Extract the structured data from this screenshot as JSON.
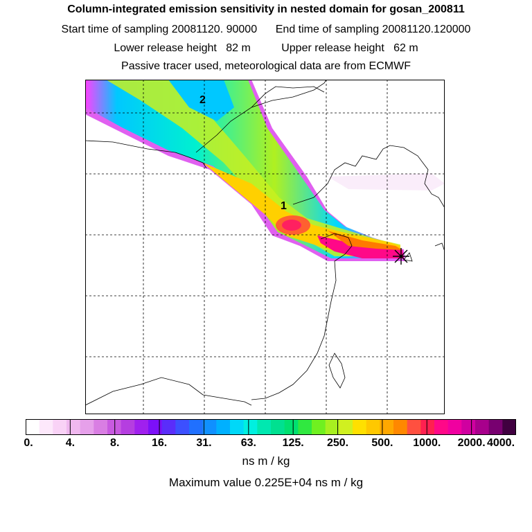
{
  "header": {
    "title": "Column-integrated emission sensitivity in nested domain for gosan_200811",
    "line2": "Start time of sampling 20081120. 90000      End time of sampling 20081120.120000",
    "line3": "Lower release height   82 m          Upper release height   62 m",
    "line4": "Passive tracer used, meteorological data are from ECMWF"
  },
  "map": {
    "cluster_labels": [
      "1",
      "2"
    ],
    "receptor_marker": "star",
    "grid": "dashed"
  },
  "colorbar": {
    "tick_labels": [
      "0.",
      "4.",
      "8.",
      "16.",
      "31.",
      "63.",
      "125.",
      "250.",
      "500.",
      "1000.",
      "2000.",
      "4000."
    ],
    "colors": [
      "#ffffff",
      "#fde8fb",
      "#f9d2f6",
      "#f0b8ef",
      "#e6a0ea",
      "#d97ee3",
      "#c85ae0",
      "#b53ee0",
      "#a020ee",
      "#7c10f8",
      "#5a2dfa",
      "#3c50ff",
      "#2070ff",
      "#1090ff",
      "#00b0ff",
      "#00d8f8",
      "#00f0e0",
      "#00e8b0",
      "#00e090",
      "#00e070",
      "#30e840",
      "#70f020",
      "#a8f020",
      "#d0f020",
      "#ffe000",
      "#ffc800",
      "#ffa800",
      "#ff8800",
      "#ff5040",
      "#ff2050",
      "#ff0888",
      "#f000a0",
      "#d000a0",
      "#a8008c",
      "#780070",
      "#400040"
    ],
    "units": "ns m / kg",
    "max_value_text": "Maximum value  0.225E+04 ns m / kg"
  }
}
